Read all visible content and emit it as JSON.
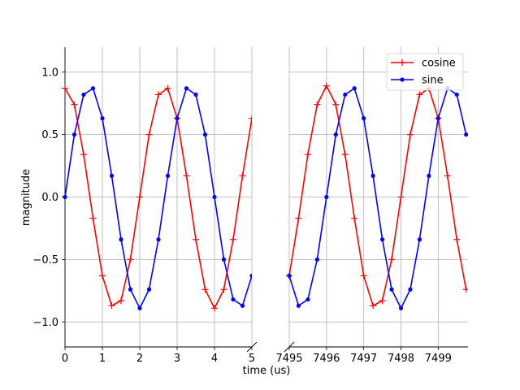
{
  "chart_data": {
    "type": "line",
    "layout": "broken-x-axis",
    "xlabel": "time (us)",
    "ylabel": "magnitude",
    "ylim": [
      -1.2,
      1.2
    ],
    "y_ticks": [
      -1.0,
      -0.5,
      0.0,
      0.5,
      1.0
    ],
    "y_tick_labels": [
      "−1.0",
      "−0.5",
      "0.0",
      "0.5",
      "1.0"
    ],
    "grid": true,
    "legend_position": "top-right of right panel",
    "panels": [
      {
        "name": "left",
        "xlim": [
          0,
          5
        ],
        "x_ticks": [
          0,
          1,
          2,
          3,
          4,
          5
        ],
        "x_tick_labels": [
          "0",
          "1",
          "2",
          "3",
          "4",
          "5"
        ]
      },
      {
        "name": "right",
        "xlim": [
          7495,
          7499.8
        ],
        "x_ticks": [
          7495,
          7496,
          7497,
          7498,
          7499
        ],
        "x_tick_labels": [
          "7495",
          "7496",
          "7497",
          "7498",
          "7499"
        ]
      }
    ],
    "series": [
      {
        "name": "cosine",
        "color": "#ff0000",
        "marker": "plus",
        "panels": [
          {
            "x": [
              0,
              0.25,
              0.5,
              0.75,
              1.0,
              1.25,
              1.5,
              1.75,
              2.0,
              2.25,
              2.5,
              2.75,
              3.0,
              3.25,
              3.5,
              3.75,
              4.0,
              4.25,
              4.5,
              4.75,
              5.0
            ],
            "y": [
              0.87,
              0.74,
              0.34,
              -0.17,
              -0.63,
              -0.87,
              -0.83,
              -0.5,
              0.0,
              0.5,
              0.82,
              0.87,
              0.63,
              0.17,
              -0.34,
              -0.74,
              -0.89,
              -0.74,
              -0.34,
              0.17,
              0.63
            ]
          },
          {
            "x": [
              7495.0,
              7495.25,
              7495.5,
              7495.75,
              7496.0,
              7496.25,
              7496.5,
              7496.75,
              7497.0,
              7497.25,
              7497.5,
              7497.75,
              7498.0,
              7498.25,
              7498.5,
              7498.75,
              7499.0,
              7499.25,
              7499.5,
              7499.75
            ],
            "y": [
              -0.63,
              -0.17,
              0.34,
              0.74,
              0.89,
              0.74,
              0.34,
              -0.17,
              -0.63,
              -0.87,
              -0.83,
              -0.5,
              0.0,
              0.5,
              0.82,
              0.87,
              0.63,
              0.17,
              -0.34,
              -0.74
            ]
          }
        ]
      },
      {
        "name": "sine",
        "color": "#0000ff",
        "marker": "dot",
        "panels": [
          {
            "x": [
              0,
              0.25,
              0.5,
              0.75,
              1.0,
              1.25,
              1.5,
              1.75,
              2.0,
              2.25,
              2.5,
              2.75,
              3.0,
              3.25,
              3.5,
              3.75,
              4.0,
              4.25,
              4.5,
              4.75,
              5.0
            ],
            "y": [
              0.0,
              0.5,
              0.82,
              0.87,
              0.63,
              0.17,
              -0.34,
              -0.74,
              -0.89,
              -0.74,
              -0.34,
              0.17,
              0.63,
              0.87,
              0.82,
              0.5,
              0.0,
              -0.5,
              -0.82,
              -0.87,
              -0.63
            ]
          },
          {
            "x": [
              7495.0,
              7495.25,
              7495.5,
              7495.75,
              7496.0,
              7496.25,
              7496.5,
              7496.75,
              7497.0,
              7497.25,
              7497.5,
              7497.75,
              7498.0,
              7498.25,
              7498.5,
              7498.75,
              7499.0,
              7499.25,
              7499.5,
              7499.75
            ],
            "y": [
              -0.63,
              -0.87,
              -0.82,
              -0.5,
              0.0,
              0.5,
              0.82,
              0.87,
              0.63,
              0.17,
              -0.34,
              -0.74,
              -0.89,
              -0.74,
              -0.34,
              0.17,
              0.63,
              0.87,
              0.82,
              0.5
            ]
          }
        ]
      }
    ]
  }
}
